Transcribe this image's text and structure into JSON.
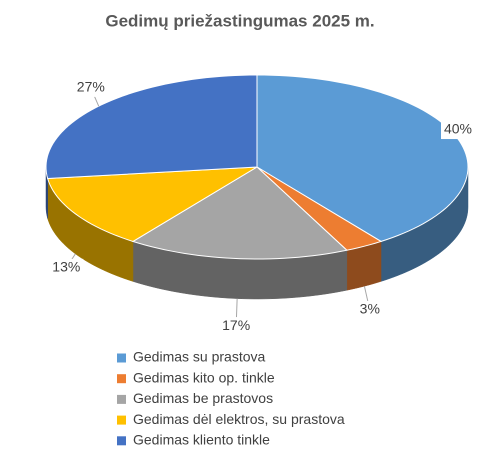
{
  "chart_data": {
    "type": "pie3d",
    "title": "Gedimų priežastingumas 2025 m.",
    "categories": [
      "Gedimas su prastova",
      "Gedimas kito op. tinkle",
      "Gedimas be prastovos",
      "Gedimas dėl elektros, su prastova",
      "Gedimas kliento tinkle"
    ],
    "values": [
      40,
      3,
      17,
      13,
      27
    ],
    "value_labels": [
      "40%",
      "3%",
      "17%",
      "13%",
      "27%"
    ],
    "colors": [
      "#5b9bd5",
      "#ed7d31",
      "#a5a5a5",
      "#ffc000",
      "#4472c4"
    ],
    "legend": "bottom"
  }
}
